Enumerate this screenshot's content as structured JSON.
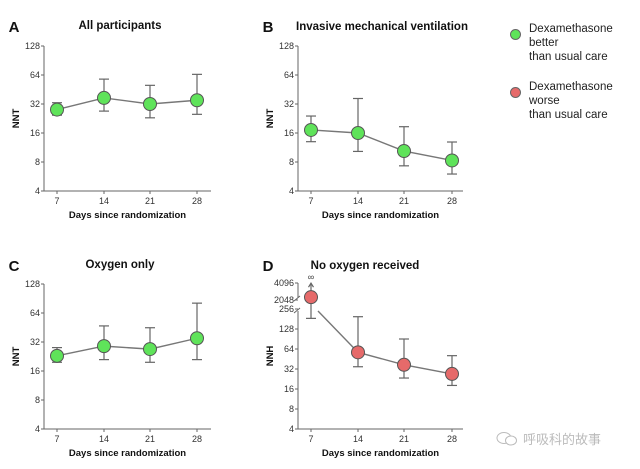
{
  "legend": {
    "items": [
      {
        "label_line1": "Dexamethasone better",
        "label_line2": "than usual care",
        "color": "#5fe35a"
      },
      {
        "label_line1": "Dexamethasone worse",
        "label_line2": "than usual care",
        "color": "#e66a6a"
      }
    ]
  },
  "watermark": {
    "text": "呼吸科的故事"
  },
  "chart_data": [
    {
      "panel": "A",
      "type": "line",
      "title": "All participants",
      "xlabel": "Days since randomization",
      "ylabel": "NNT",
      "yscale": "log2",
      "ylim": [
        4,
        128
      ],
      "yticks": [
        "4",
        "8",
        "16",
        "32",
        "64",
        "128"
      ],
      "x": [
        7,
        14,
        21,
        28
      ],
      "xticks": [
        "7",
        "14",
        "21",
        "28"
      ],
      "series": [
        {
          "name": "Dexamethasone better than usual care",
          "values": [
            28,
            37,
            32,
            35
          ],
          "err_low": [
            24.5,
            27,
            23,
            25
          ],
          "err_high": [
            33,
            58,
            50,
            65
          ],
          "color": "#5fe35a"
        }
      ]
    },
    {
      "panel": "B",
      "type": "line",
      "title": "Invasive mechanical ventilation",
      "xlabel": "Days since randomization",
      "ylabel": "NNT",
      "yscale": "log2",
      "ylim": [
        4,
        128
      ],
      "yticks": [
        "4",
        "8",
        "16",
        "32",
        "64",
        "128"
      ],
      "x": [
        7,
        14,
        21,
        28
      ],
      "xticks": [
        "7",
        "14",
        "21",
        "28"
      ],
      "series": [
        {
          "name": "Dexamethasone better than usual care",
          "values": [
            17.2,
            16,
            10.4,
            8.3
          ],
          "err_low": [
            13,
            10.3,
            7.3,
            6
          ],
          "err_high": [
            24,
            36.5,
            18.6,
            12.9
          ],
          "color": "#5fe35a"
        }
      ]
    },
    {
      "panel": "C",
      "type": "line",
      "title": "Oxygen only",
      "xlabel": "Days since randomization",
      "ylabel": "NNT",
      "yscale": "log2",
      "ylim": [
        4,
        128
      ],
      "yticks": [
        "4",
        "8",
        "16",
        "32",
        "64",
        "128"
      ],
      "x": [
        7,
        14,
        21,
        28
      ],
      "xticks": [
        "7",
        "14",
        "21",
        "28"
      ],
      "series": [
        {
          "name": "Dexamethasone better than usual care",
          "values": [
            23,
            29,
            27,
            35
          ],
          "err_low": [
            19.7,
            21,
            19.7,
            21
          ],
          "err_high": [
            28,
            47,
            45,
            81
          ],
          "color": "#5fe35a"
        }
      ]
    },
    {
      "panel": "D",
      "type": "line",
      "title": "No oxygen received",
      "xlabel": "Days since randomization",
      "ylabel": "NNH",
      "yscale": "log2",
      "ylim": [
        4,
        4096
      ],
      "axis_break": [
        256,
        2048
      ],
      "yticks": [
        "4",
        "8",
        "16",
        "32",
        "64",
        "128",
        "256",
        "2048",
        "4096"
      ],
      "x": [
        7,
        14,
        21,
        28
      ],
      "xticks": [
        "7",
        "14",
        "21",
        "28"
      ],
      "annotation": "∞",
      "series": [
        {
          "name": "Dexamethasone worse than usual care",
          "values": [
            2300,
            57,
            37,
            27
          ],
          "err_low": [
            185,
            34.6,
            23.4,
            18.1
          ],
          "err_high": [
            "∞",
            196,
            90.5,
            50.8
          ],
          "color": "#e66a6a"
        }
      ]
    }
  ]
}
